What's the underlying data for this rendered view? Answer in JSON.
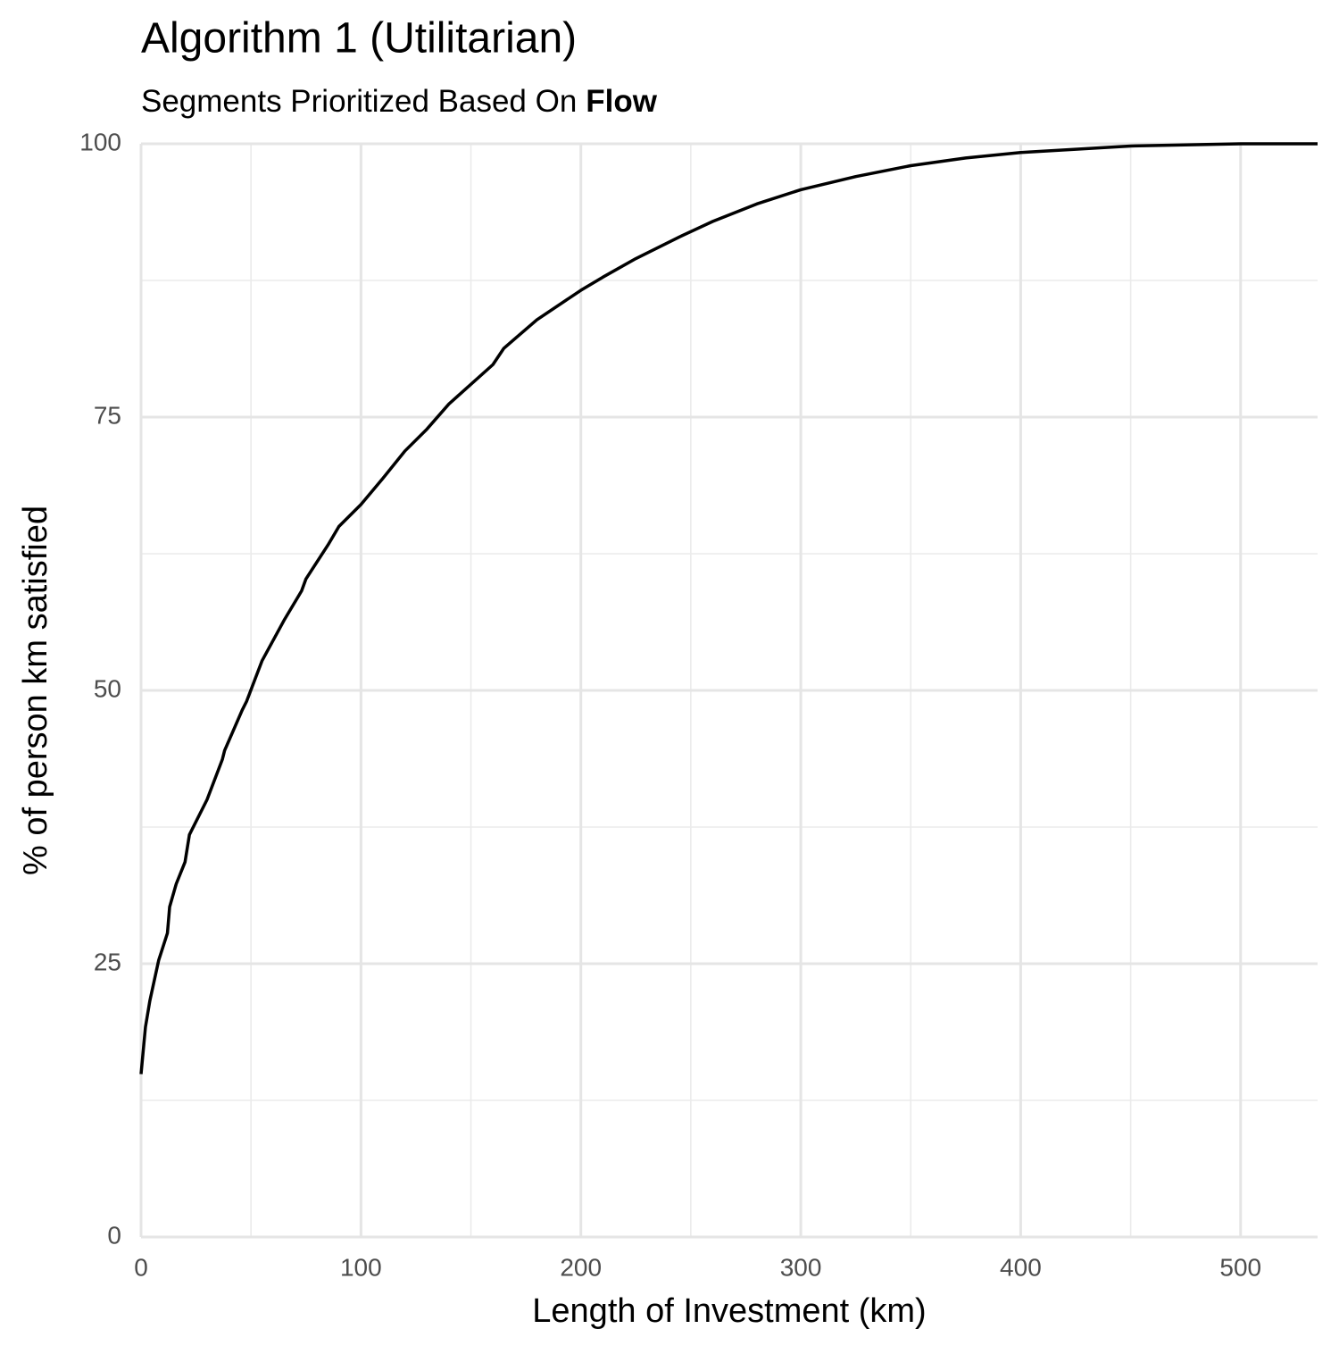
{
  "chart_data": {
    "type": "line",
    "title": "Algorithm 1 (Utilitarian)",
    "subtitle": {
      "text": "Segments Prioritized Based On",
      "emphasis": "Flow"
    },
    "x_label": "Length of Investment (km)",
    "y_label": "% of person km satisfied",
    "x": [
      0,
      2,
      4,
      8,
      12,
      13,
      16,
      20,
      22,
      30,
      37,
      38,
      46,
      48,
      55,
      65,
      73,
      75,
      85,
      90,
      100,
      110,
      120,
      130,
      140,
      160,
      165,
      180,
      200,
      210,
      225,
      245,
      260,
      280,
      300,
      325,
      350,
      375,
      400,
      450,
      500,
      535
    ],
    "series": [
      {
        "color": "#000000",
        "values": [
          14.9,
          19.2,
          21.6,
          25.3,
          27.8,
          30.2,
          32.3,
          34.3,
          36.8,
          40.0,
          43.7,
          44.5,
          48.2,
          49.0,
          52.7,
          56.4,
          59.1,
          60.2,
          63.3,
          65.0,
          67.0,
          69.4,
          71.9,
          73.9,
          76.2,
          79.8,
          81.3,
          83.9,
          86.6,
          87.8,
          89.5,
          91.5,
          92.9,
          94.5,
          95.8,
          97.0,
          98.0,
          98.7,
          99.2,
          99.8,
          100,
          100
        ]
      }
    ],
    "xlim": [
      0,
      535
    ],
    "xticks": [
      0,
      100,
      200,
      300,
      400,
      500
    ],
    "ylim": [
      0,
      100
    ],
    "yticks": [
      0,
      25,
      50,
      75,
      100
    ],
    "grid": true,
    "minor_grid": true
  }
}
